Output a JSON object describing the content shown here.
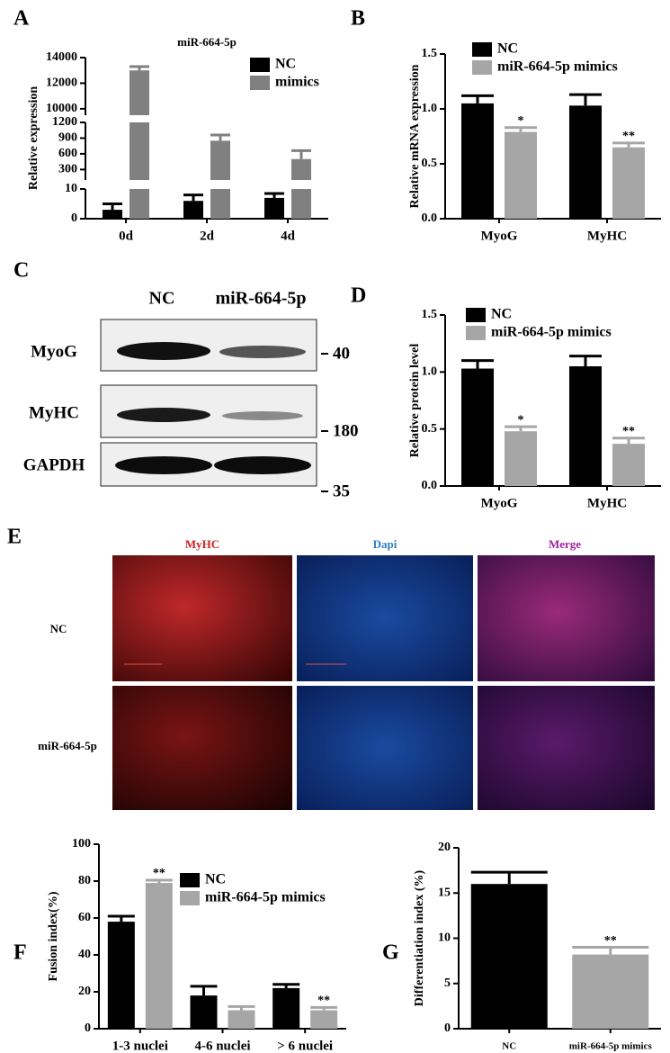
{
  "chart_data": [
    {
      "type": "bar",
      "panel": "A",
      "title": "miR-664-5p",
      "ylabel": "Relative  expression",
      "legend": "upper right",
      "categories": [
        "0d",
        "2d",
        "4d"
      ],
      "y_segments": [
        {
          "ylim": [
            0,
            10
          ],
          "yticks": [
            0,
            10
          ]
        },
        {
          "ylim": [
            100,
            1200
          ],
          "yticks": [
            300,
            600,
            900,
            1200
          ]
        },
        {
          "ylim": [
            9500,
            14000
          ],
          "yticks": [
            10000,
            12000,
            14000
          ]
        }
      ],
      "series": [
        {
          "name": "NC",
          "color": "#000000",
          "values": [
            3,
            6,
            7
          ],
          "errors": [
            2,
            2,
            1.5
          ]
        },
        {
          "name": "mimics",
          "color": "#808080",
          "values": [
            13000,
            850,
            500
          ],
          "errors": [
            300,
            110,
            160
          ]
        }
      ]
    },
    {
      "type": "bar",
      "panel": "B",
      "ylabel": "Relative mRNA expression",
      "legend": "upper left",
      "categories": [
        "MyoG",
        "MyHC"
      ],
      "ylim": [
        0,
        1.5
      ],
      "yticks": [
        {
          "value": 0,
          "label": "0.0"
        },
        {
          "value": 0.5,
          "label": "0.5"
        },
        {
          "value": 1,
          "label": "1.0"
        },
        {
          "value": 1.5,
          "label": "1.5"
        }
      ],
      "series": [
        {
          "name": "NC",
          "color": "#000000",
          "values": [
            1.05,
            1.03
          ],
          "errors": [
            0.07,
            0.1
          ]
        },
        {
          "name": "miR-664-5p mimics",
          "color": "#a6a6a6",
          "values": [
            0.79,
            0.65
          ],
          "errors": [
            0.04,
            0.04
          ],
          "significance": [
            "*",
            "**"
          ]
        }
      ]
    },
    {
      "type": "bar",
      "panel": "D",
      "ylabel": "Relative protein level",
      "legend": "upper left",
      "categories": [
        "MyoG",
        "MyHC"
      ],
      "ylim": [
        0,
        1.5
      ],
      "yticks": [
        {
          "value": 0,
          "label": "0.0"
        },
        {
          "value": 0.5,
          "label": "0.5"
        },
        {
          "value": 1,
          "label": "1.0"
        },
        {
          "value": 1.5,
          "label": "1.5"
        }
      ],
      "series": [
        {
          "name": "NC",
          "color": "#000000",
          "values": [
            1.03,
            1.05
          ],
          "errors": [
            0.07,
            0.09
          ]
        },
        {
          "name": "miR-664-5p mimics",
          "color": "#a6a6a6",
          "values": [
            0.48,
            0.37
          ],
          "errors": [
            0.04,
            0.05
          ],
          "significance": [
            "*",
            "**"
          ]
        }
      ]
    },
    {
      "type": "bar",
      "panel": "F",
      "ylabel": "Fusion index(%)",
      "legend": "upper center",
      "categories": [
        "1-3 nuclei",
        "4-6 nuclei",
        "> 6 nuclei"
      ],
      "ylim": [
        0,
        100
      ],
      "yticks": [
        0,
        20,
        40,
        60,
        80,
        100
      ],
      "series": [
        {
          "name": "NC",
          "color": "#000000",
          "values": [
            58,
            18,
            22
          ],
          "errors": [
            3,
            5,
            2
          ]
        },
        {
          "name": "miR-664-5p mimics",
          "color": "#a6a6a6",
          "values": [
            79,
            10,
            10
          ],
          "errors": [
            1.5,
            2,
            1.5
          ],
          "significance": [
            "**",
            null,
            "**"
          ]
        }
      ]
    },
    {
      "type": "bar",
      "panel": "G",
      "ylabel": "Differentiation index (%)",
      "categories": [
        "NC",
        "miR-664-5p mimics"
      ],
      "ylim": [
        0,
        20
      ],
      "yticks": [
        0,
        5,
        10,
        15,
        20
      ],
      "series": [
        {
          "colors": [
            "#000000",
            "#a6a6a6"
          ],
          "values": [
            16,
            8.2
          ],
          "errors": [
            1.3,
            0.8
          ],
          "significance": [
            null,
            "**"
          ]
        }
      ]
    }
  ],
  "blot": {
    "panel": "C",
    "columns": [
      "NC",
      "miR-664-5p"
    ],
    "rows": [
      {
        "label": "MyoG",
        "marker": "40"
      },
      {
        "label": "MyHC",
        "marker": "180"
      },
      {
        "label": "GAPDH",
        "marker": "35"
      }
    ]
  },
  "microscopy": {
    "panel": "E",
    "columns": [
      "MyHC",
      "Dapi",
      "Merge"
    ],
    "rows": [
      "NC",
      "miR-664-5p"
    ]
  }
}
